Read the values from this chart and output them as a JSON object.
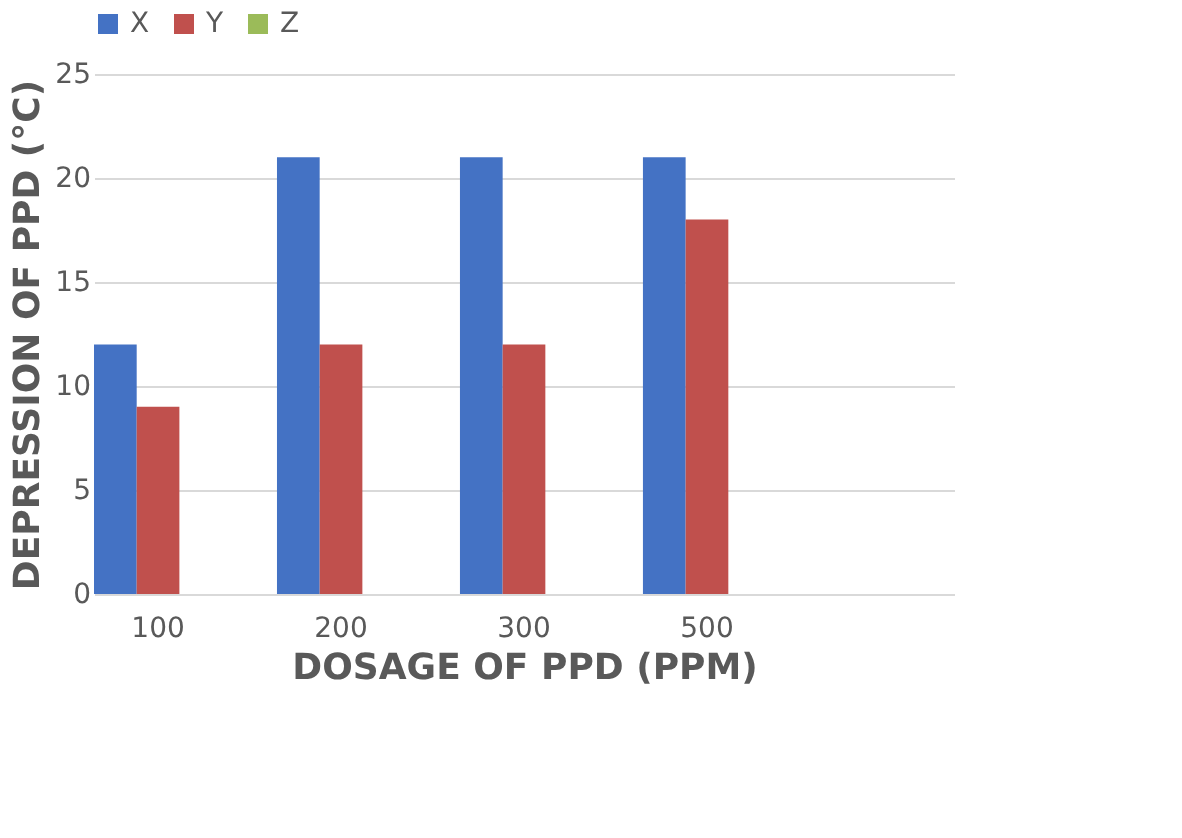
{
  "chart_data": {
    "type": "bar",
    "xlabel": "DOSAGE OF PPD (PPM)",
    "ylabel": "DEPRESSION OF PPD (°C)",
    "categories": [
      "100",
      "200",
      "300",
      "500",
      null
    ],
    "series": [
      {
        "name": "X",
        "color": "#4472c4",
        "values": [
          12,
          21,
          21,
          21,
          null
        ]
      },
      {
        "name": "Y",
        "color": "#c0504d",
        "values": [
          9,
          12,
          12,
          18,
          null
        ]
      },
      {
        "name": "Z",
        "color": "#9bbb59",
        "values": [
          null,
          null,
          null,
          null,
          null
        ]
      }
    ],
    "ylim": [
      0,
      25
    ],
    "yticks": [
      0,
      5,
      10,
      15,
      20,
      25
    ],
    "grid": "y",
    "legend": "top"
  }
}
